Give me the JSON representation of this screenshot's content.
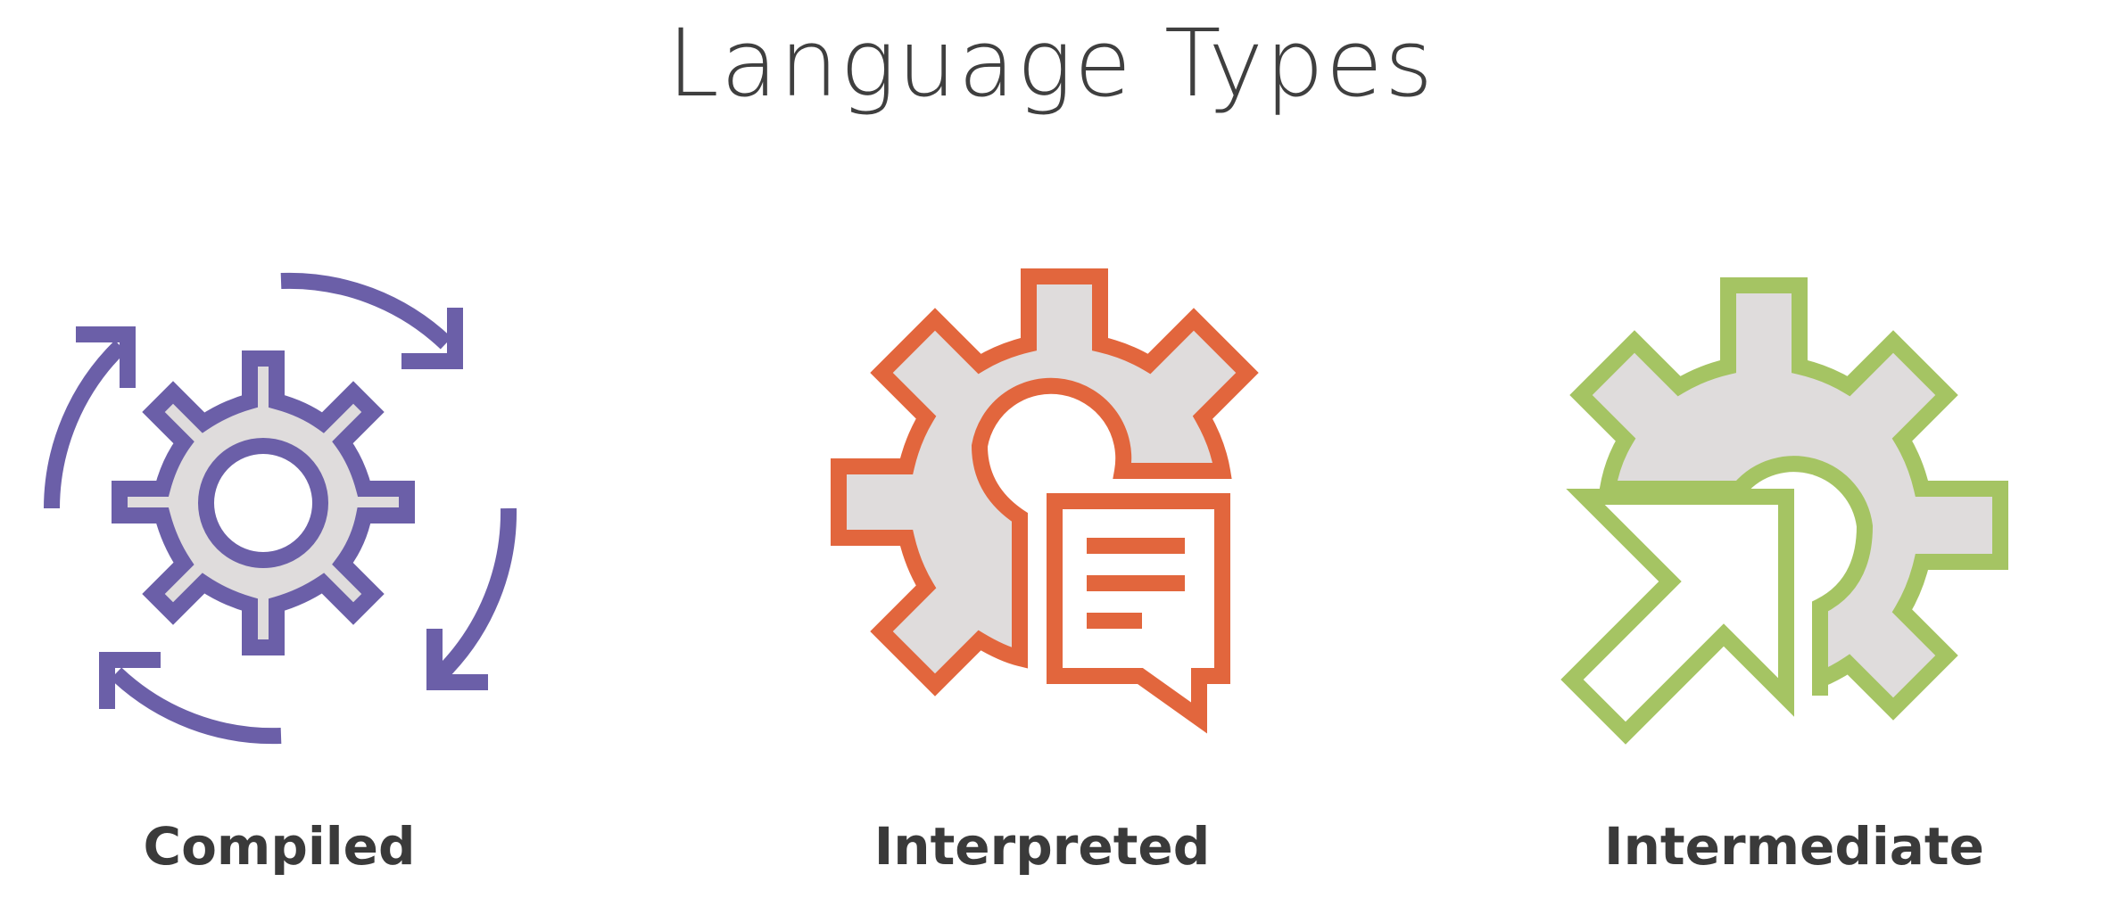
{
  "title": "Language Types",
  "colors": {
    "compiled": "#6b5fa8",
    "interpreted": "#e2663d",
    "intermediate": "#a5c463",
    "gear_fill": "#dfdcdc",
    "text": "#3a3a3a"
  },
  "items": [
    {
      "label": "Compiled",
      "icon": "gear-cycle-icon"
    },
    {
      "label": "Interpreted",
      "icon": "gear-document-icon"
    },
    {
      "label": "Intermediate",
      "icon": "gear-arrow-icon"
    }
  ]
}
